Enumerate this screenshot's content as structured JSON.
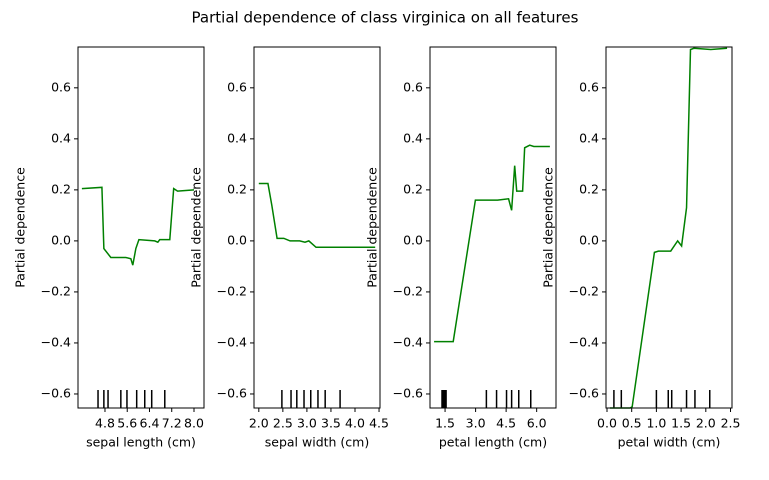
{
  "title": "Partial dependence of class virginica on all features",
  "chart_data": [
    {
      "type": "line",
      "xlabel": "sepal length (cm)",
      "ylabel": "Partial dependence",
      "color": "#008000",
      "x": [
        3.97,
        4.69,
        4.76,
        5.01,
        5.55,
        5.73,
        5.8,
        5.91,
        6.02,
        6.59,
        6.7,
        6.77,
        7.13,
        7.27,
        7.41,
        8.0
      ],
      "values": [
        0.205,
        0.21,
        -0.03,
        -0.065,
        -0.065,
        -0.07,
        -0.095,
        -0.03,
        0.005,
        0.0,
        -0.005,
        0.005,
        0.005,
        0.205,
        0.195,
        0.2
      ],
      "deciles": [
        4.55,
        4.76,
        4.91,
        5.37,
        5.59,
        5.94,
        6.23,
        6.48,
        6.95
      ],
      "xlim": [
        3.83,
        8.36
      ],
      "xticks": [
        4.8,
        5.6,
        6.4,
        7.2,
        {
          "value": 8,
          "label": "8.0"
        }
      ],
      "ylim": [
        -0.655,
        0.76
      ],
      "yticks": [
        {
          "value": -0.6,
          "label": "−0.6"
        },
        {
          "value": -0.4,
          "label": "−0.4"
        },
        {
          "value": -0.2,
          "label": "−0.2"
        },
        {
          "value": 0,
          "label": "0.0"
        },
        0.2,
        0.4,
        0.6
      ]
    },
    {
      "type": "line",
      "xlabel": "sepal width (cm)",
      "ylabel": "Partial dependence",
      "color": "#008000",
      "x": [
        2.0,
        2.19,
        2.27,
        2.38,
        2.52,
        2.65,
        2.85,
        2.96,
        3.04,
        3.19,
        4.42
      ],
      "values": [
        0.225,
        0.225,
        0.14,
        0.01,
        0.01,
        0.0,
        0.0,
        -0.005,
        0.0,
        -0.025,
        -0.025
      ],
      "deciles": [
        2.48,
        2.67,
        2.79,
        2.94,
        3.08,
        3.23,
        3.38,
        3.69
      ],
      "xlim": [
        1.9,
        4.52
      ],
      "xticks": [
        {
          "value": 2,
          "label": "2.0"
        },
        2.5,
        {
          "value": 3,
          "label": "3.0"
        },
        3.5,
        {
          "value": 4,
          "label": "4.0"
        },
        4.5
      ],
      "ylim": [
        -0.655,
        0.76
      ],
      "yticks": [
        {
          "value": -0.6,
          "label": "−0.6"
        },
        {
          "value": -0.4,
          "label": "−0.4"
        },
        {
          "value": -0.2,
          "label": "−0.2"
        },
        {
          "value": 0,
          "label": "0.0"
        },
        0.2,
        0.4,
        0.6
      ]
    },
    {
      "type": "line",
      "xlabel": "petal length (cm)",
      "ylabel": "Partial dependence",
      "color": "#008000",
      "x": [
        0.96,
        1.9,
        2.99,
        4.08,
        4.62,
        4.77,
        4.92,
        5.02,
        5.31,
        5.41,
        5.66,
        5.86,
        6.65
      ],
      "values": [
        -0.395,
        -0.395,
        0.16,
        0.16,
        0.165,
        0.12,
        0.295,
        0.195,
        0.195,
        0.365,
        0.375,
        0.37,
        0.37
      ],
      "deciles": [
        1.35,
        1.4,
        1.45,
        1.5,
        1.55,
        3.53,
        4.03,
        4.52,
        4.77,
        5.12,
        5.71
      ],
      "xlim": [
        0.76,
        6.95
      ],
      "xticks": [
        1.5,
        {
          "value": 3,
          "label": "3.0"
        },
        4.5,
        {
          "value": 6,
          "label": "6.0"
        }
      ],
      "ylim": [
        -0.655,
        0.76
      ],
      "yticks": [
        {
          "value": -0.6,
          "label": "−0.6"
        },
        {
          "value": -0.4,
          "label": "−0.4"
        },
        {
          "value": -0.2,
          "label": "−0.2"
        },
        {
          "value": 0,
          "label": "0.0"
        },
        0.2,
        0.4,
        0.6
      ]
    },
    {
      "type": "line",
      "xlabel": "petal width (cm)",
      "ylabel": "Partial dependence",
      "color": "#008000",
      "x": [
        0.06,
        0.47,
        0.51,
        0.96,
        1.04,
        1.29,
        1.43,
        1.51,
        1.61,
        1.69,
        1.76,
        2.1,
        2.43
      ],
      "values": [
        -0.655,
        -0.655,
        -0.65,
        -0.045,
        -0.04,
        -0.04,
        0.0,
        -0.02,
        0.13,
        0.75,
        0.755,
        0.75,
        0.755
      ],
      "deciles": [
        0.14,
        0.29,
        1.0,
        1.24,
        1.31,
        1.61,
        1.78,
        2.08
      ],
      "xlim": [
        -0.02,
        2.53
      ],
      "xticks": [
        {
          "value": 0,
          "label": "0.0"
        },
        0.5,
        {
          "value": 1,
          "label": "1.0"
        },
        1.5,
        {
          "value": 2,
          "label": "2.0"
        },
        2.5
      ],
      "ylim": [
        -0.655,
        0.76
      ],
      "yticks": [
        {
          "value": -0.6,
          "label": "−0.6"
        },
        {
          "value": -0.4,
          "label": "−0.4"
        },
        {
          "value": -0.2,
          "label": "−0.2"
        },
        {
          "value": 0,
          "label": "0.0"
        },
        0.2,
        0.4,
        0.6
      ]
    }
  ]
}
